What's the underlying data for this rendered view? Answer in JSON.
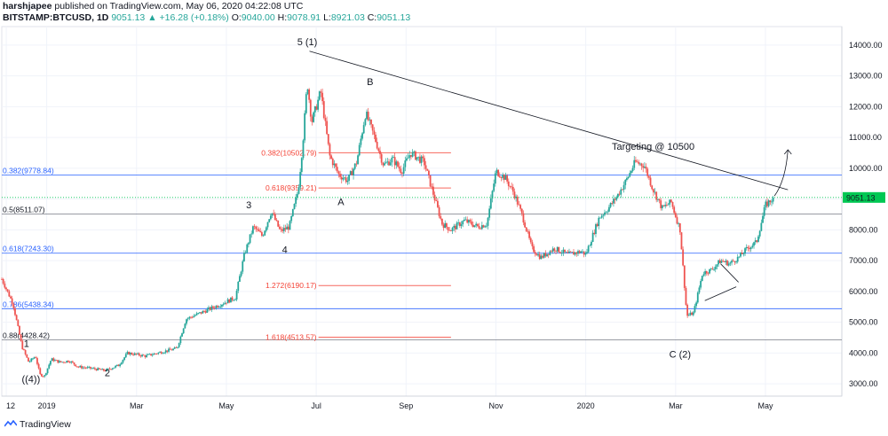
{
  "header": {
    "author": "harshjapee",
    "published_text": "published on TradingView.com, May 06, 2020 04:22:08 UTC",
    "symbol": "BITSTAMP:BTCUSD, 1D",
    "last": "9051.13",
    "change": "+16.28 (+0.18%)",
    "open_key": "O:",
    "open": "9040.00",
    "high_key": "H:",
    "high": "9078.91",
    "low_key": "L:",
    "low": "8921.03",
    "close_key": "C:",
    "close": "9051.13"
  },
  "footer": {
    "brand": "TradingView"
  },
  "colors": {
    "up": "#26a69a",
    "down": "#ef5350",
    "blue": "#2962ff",
    "red": "#f44336",
    "price_tag": "#00c853"
  },
  "chart_data": {
    "type": "candlestick",
    "ylim": [
      2600,
      14600
    ],
    "y_ticks": [
      3000,
      4000,
      5000,
      6000,
      7000,
      8000,
      9000,
      10000,
      11000,
      12000,
      13000,
      14000
    ],
    "y_tick_labels": [
      "3000.00",
      "4000.00",
      "5000.00",
      "6000.00",
      "7000.00",
      "8000.00",
      "9000.00",
      "10000.00",
      "11000.00",
      "12000.00",
      "13000.00",
      "14000.00"
    ],
    "x_ticks": [
      "12",
      "2019",
      "Mar",
      "May",
      "Jul",
      "Sep",
      "Nov",
      "2020",
      "Mar",
      "May"
    ],
    "x_tick_months": [
      -0.9,
      0,
      2,
      4,
      6,
      8,
      10,
      12,
      14,
      16
    ],
    "xlim_months": [
      -1.0,
      17.7
    ],
    "price_tag": "9051.13",
    "price_tag_value": 9051.13,
    "path": [
      [
        -1.0,
        6400
      ],
      [
        -0.75,
        5600
      ],
      [
        -0.55,
        4200
      ],
      [
        -0.4,
        3700
      ],
      [
        -0.25,
        3900
      ],
      [
        -0.15,
        3300
      ],
      [
        -0.05,
        3250
      ],
      [
        0.1,
        3800
      ],
      [
        0.3,
        3700
      ],
      [
        0.5,
        3750
      ],
      [
        0.7,
        3550
      ],
      [
        1.0,
        3500
      ],
      [
        1.3,
        3430
      ],
      [
        1.6,
        3600
      ],
      [
        1.8,
        4000
      ],
      [
        2.2,
        3900
      ],
      [
        2.6,
        4050
      ],
      [
        2.9,
        4150
      ],
      [
        3.1,
        5100
      ],
      [
        3.5,
        5350
      ],
      [
        3.9,
        5600
      ],
      [
        4.2,
        5800
      ],
      [
        4.4,
        7200
      ],
      [
        4.6,
        8100
      ],
      [
        4.8,
        7800
      ],
      [
        5.0,
        8600
      ],
      [
        5.2,
        7950
      ],
      [
        5.4,
        8100
      ],
      [
        5.6,
        9300
      ],
      [
        5.7,
        10800
      ],
      [
        5.8,
        12800
      ],
      [
        5.9,
        11500
      ],
      [
        6.1,
        12500
      ],
      [
        6.3,
        10400
      ],
      [
        6.5,
        9800
      ],
      [
        6.7,
        9600
      ],
      [
        6.9,
        10200
      ],
      [
        7.1,
        11800
      ],
      [
        7.3,
        11000
      ],
      [
        7.5,
        10100
      ],
      [
        7.7,
        10300
      ],
      [
        7.9,
        9900
      ],
      [
        8.1,
        10500
      ],
      [
        8.4,
        10200
      ],
      [
        8.6,
        9200
      ],
      [
        8.8,
        8200
      ],
      [
        9.0,
        8000
      ],
      [
        9.3,
        8300
      ],
      [
        9.6,
        8100
      ],
      [
        9.8,
        8200
      ],
      [
        10.0,
        9900
      ],
      [
        10.2,
        9700
      ],
      [
        10.4,
        9200
      ],
      [
        10.6,
        8400
      ],
      [
        10.8,
        7400
      ],
      [
        11.0,
        7100
      ],
      [
        11.3,
        7400
      ],
      [
        11.6,
        7200
      ],
      [
        11.9,
        7300
      ],
      [
        12.0,
        7200
      ],
      [
        12.3,
        8400
      ],
      [
        12.5,
        8700
      ],
      [
        12.7,
        9100
      ],
      [
        12.9,
        9600
      ],
      [
        13.1,
        10200
      ],
      [
        13.3,
        10100
      ],
      [
        13.5,
        9300
      ],
      [
        13.7,
        8700
      ],
      [
        13.9,
        8900
      ],
      [
        14.1,
        8000
      ],
      [
        14.25,
        5200
      ],
      [
        14.4,
        5300
      ],
      [
        14.6,
        6600
      ],
      [
        14.8,
        6700
      ],
      [
        15.0,
        7000
      ],
      [
        15.2,
        6900
      ],
      [
        15.4,
        7100
      ],
      [
        15.6,
        7400
      ],
      [
        15.8,
        7600
      ],
      [
        16.0,
        8800
      ],
      [
        16.15,
        9000
      ],
      [
        16.2,
        9051.13
      ]
    ],
    "fib_levels": [
      {
        "label": "0.382(9778.84)",
        "value": 9778.84,
        "color": "blue",
        "full": true
      },
      {
        "label": "0.5(8511.07)",
        "value": 8511.07,
        "color": "gray",
        "full": true
      },
      {
        "label": "0.618(7243.30)",
        "value": 7243.3,
        "color": "blue",
        "full": true
      },
      {
        "label": "0.786(5438.34)",
        "value": 5438.34,
        "color": "blue",
        "full": true
      },
      {
        "label": "0.88(4428.42)",
        "value": 4428.42,
        "color": "gray",
        "full": true
      },
      {
        "label": "0.382(10502.79)",
        "value": 10502.79,
        "color": "red",
        "full": false
      },
      {
        "label": "0.618(9359.21)",
        "value": 9359.21,
        "color": "red",
        "full": false
      },
      {
        "label": "1.272(6190.17)",
        "value": 6190.17,
        "color": "red",
        "full": false
      },
      {
        "label": "1.618(4513.57)",
        "value": 4513.57,
        "color": "red",
        "full": false
      }
    ],
    "wave_labels": [
      {
        "text": "5 (1)",
        "x": 5.8,
        "y": 14000
      },
      {
        "text": "B",
        "x": 7.2,
        "y": 12700
      },
      {
        "text": "A",
        "x": 6.55,
        "y": 8800
      },
      {
        "text": "3",
        "x": 4.5,
        "y": 8700
      },
      {
        "text": "4",
        "x": 5.3,
        "y": 7250
      },
      {
        "text": "1",
        "x": -0.45,
        "y": 4200
      },
      {
        "text": "((4))",
        "x": -0.35,
        "y": 3050
      },
      {
        "text": "2",
        "x": 1.35,
        "y": 3250
      },
      {
        "text": "C (2)",
        "x": 14.1,
        "y": 3850
      },
      {
        "text": "Targeting @ 10500",
        "x": 13.5,
        "y": 10600
      }
    ],
    "trendline": [
      [
        5.85,
        13800
      ],
      [
        16.5,
        9300
      ]
    ],
    "arrow": [
      [
        16.2,
        9100
      ],
      [
        16.5,
        10600
      ]
    ]
  }
}
